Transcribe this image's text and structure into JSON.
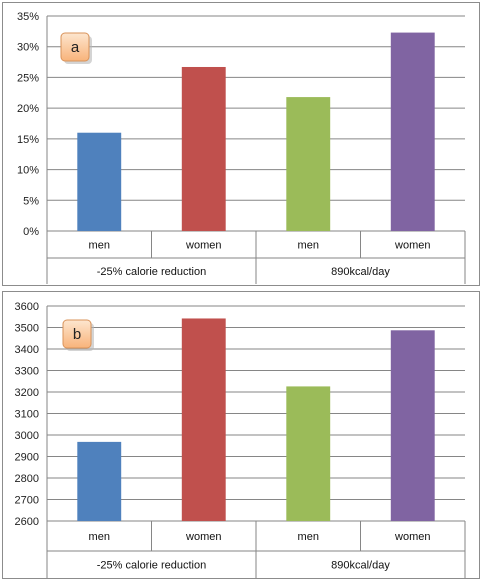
{
  "chart_data": [
    {
      "type": "bar",
      "panel_label": "a",
      "categories": [
        "men",
        "women",
        "men",
        "women"
      ],
      "groups": [
        "-25% calorie reduction",
        "890kcal/day"
      ],
      "values": [
        16,
        26.7,
        21.8,
        32.3
      ],
      "unit": "%",
      "ylim": [
        0,
        35
      ],
      "yticks": [
        0,
        5,
        10,
        15,
        20,
        25,
        30,
        35
      ],
      "ytick_labels": [
        "0%",
        "5%",
        "10%",
        "15%",
        "20%",
        "25%",
        "30%",
        "35%"
      ],
      "grid": true,
      "colors": [
        "#4f81bd",
        "#c0504d",
        "#9bbb59",
        "#8064a2"
      ]
    },
    {
      "type": "bar",
      "panel_label": "b",
      "categories": [
        "men",
        "women",
        "men",
        "women"
      ],
      "groups": [
        "-25% calorie reduction",
        "890kcal/day"
      ],
      "values": [
        2968,
        3542,
        3226,
        3487
      ],
      "ylim": [
        2600,
        3600
      ],
      "yticks": [
        2600,
        2700,
        2800,
        2900,
        3000,
        3100,
        3200,
        3300,
        3400,
        3500,
        3600
      ],
      "ytick_labels": [
        "2600",
        "2700",
        "2800",
        "2900",
        "3000",
        "3100",
        "3200",
        "3300",
        "3400",
        "3500",
        "3600"
      ],
      "grid": true,
      "colors": [
        "#4f81bd",
        "#c0504d",
        "#9bbb59",
        "#8064a2"
      ]
    }
  ]
}
